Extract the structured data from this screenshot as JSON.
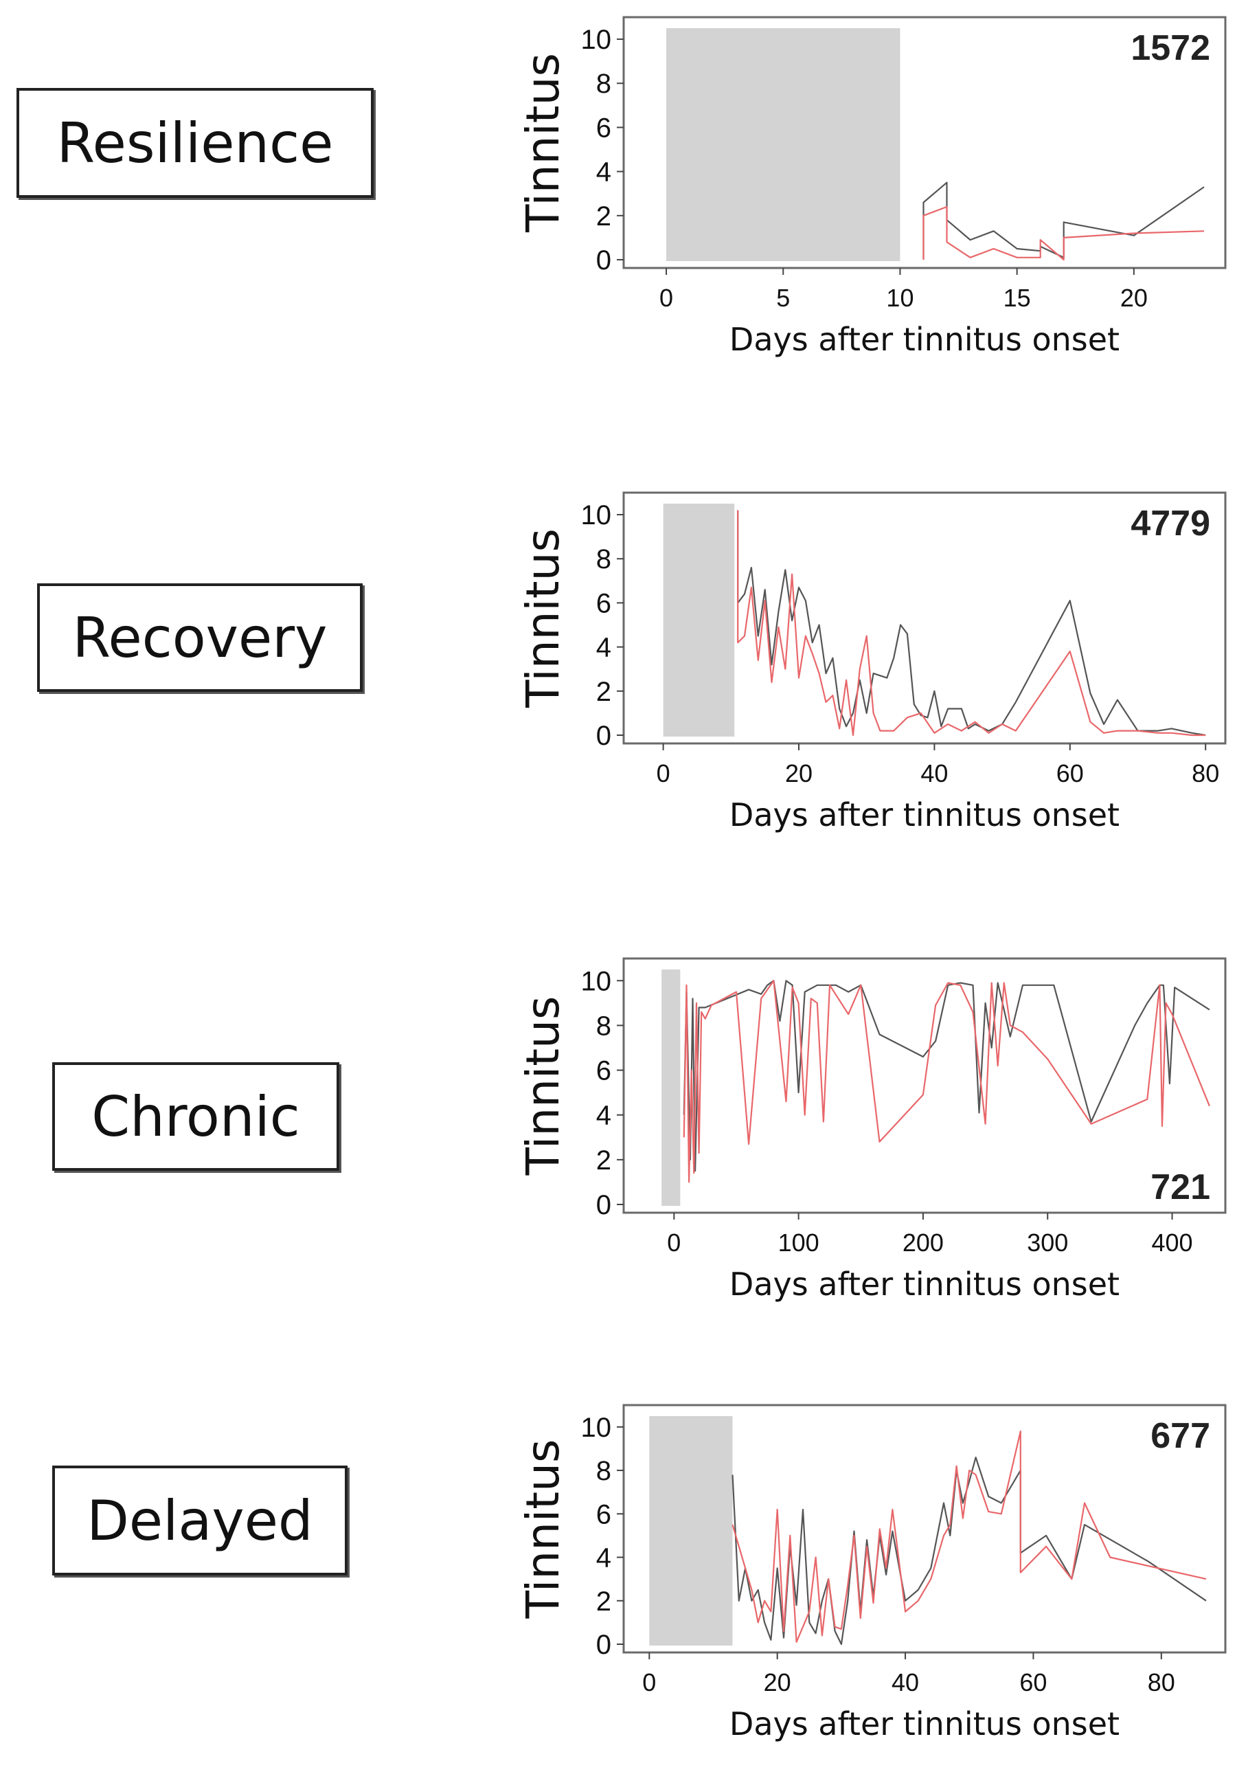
{
  "chart_data": [
    {
      "type": "line",
      "group_label": "Resilience",
      "patient_id": "1572",
      "id_position": "top-right",
      "xlabel": "Days after tinnitus onset",
      "ylabel": "Tinnitus",
      "xlim": [
        -1,
        23.5
      ],
      "ylim": [
        0,
        10.5
      ],
      "xticks": [
        0,
        5,
        10,
        15,
        20
      ],
      "yticks": [
        0,
        2,
        4,
        6,
        8,
        10
      ],
      "shaded_interval": [
        0,
        10
      ],
      "series": [
        {
          "name": "black",
          "color": "#555555",
          "x": [
            11,
            11,
            12,
            12,
            13,
            14,
            15,
            16,
            16,
            17,
            17,
            20,
            23
          ],
          "y": [
            0,
            2.6,
            3.5,
            1.8,
            0.9,
            1.3,
            0.5,
            0.4,
            0.6,
            0.1,
            1.7,
            1.1,
            3.3
          ]
        },
        {
          "name": "red",
          "color": "#e8676a",
          "x": [
            11,
            11,
            12,
            12,
            13,
            14,
            15,
            16,
            16,
            17,
            17,
            20,
            23
          ],
          "y": [
            0,
            2.0,
            2.4,
            0.8,
            0.1,
            0.5,
            0.1,
            0.1,
            0.9,
            0.0,
            1.0,
            1.2,
            1.3
          ]
        }
      ]
    },
    {
      "type": "line",
      "group_label": "Recovery",
      "patient_id": "4779",
      "id_position": "top-right",
      "xlabel": "Days after tinnitus onset",
      "ylabel": "Tinnitus",
      "xlim": [
        -3,
        81.5
      ],
      "ylim": [
        0,
        10.5
      ],
      "xticks": [
        0,
        20,
        40,
        60,
        80
      ],
      "yticks": [
        0,
        2,
        4,
        6,
        8,
        10
      ],
      "shaded_interval": [
        0,
        10.5
      ],
      "series": [
        {
          "name": "black",
          "color": "#555555",
          "x": [
            11,
            11,
            12,
            13,
            14,
            15,
            16,
            17,
            18,
            19,
            20,
            21,
            22,
            23,
            24,
            25,
            26,
            27,
            28,
            29,
            30,
            31,
            33,
            34,
            35,
            36,
            37,
            38,
            39,
            40,
            41,
            42,
            44,
            45,
            46,
            48,
            50,
            52,
            60,
            63,
            65,
            67,
            70,
            73,
            75,
            78,
            80
          ],
          "y": [
            10.2,
            6.0,
            6.4,
            7.6,
            4.5,
            6.6,
            3.2,
            5.6,
            7.5,
            5.2,
            6.7,
            6.1,
            4.2,
            5.0,
            2.8,
            3.5,
            1.2,
            0.4,
            1.0,
            2.5,
            1.0,
            2.8,
            2.6,
            3.5,
            5.0,
            4.6,
            1.4,
            0.9,
            0.8,
            2.0,
            0.4,
            1.2,
            1.2,
            0.3,
            0.5,
            0.2,
            0.5,
            1.5,
            6.1,
            1.9,
            0.5,
            1.6,
            0.2,
            0.2,
            0.3,
            0.1,
            0.0
          ]
        },
        {
          "name": "red",
          "color": "#e8676a",
          "x": [
            11,
            11,
            12,
            13,
            14,
            15,
            16,
            17,
            18,
            19,
            20,
            21,
            22,
            23,
            24,
            25,
            26,
            27,
            28,
            29,
            30,
            31,
            32,
            34,
            36,
            38,
            40,
            42,
            44,
            46,
            48,
            50,
            52,
            60,
            63,
            65,
            67,
            70,
            73,
            75,
            78,
            80
          ],
          "y": [
            10.2,
            4.2,
            4.5,
            6.7,
            3.4,
            6.1,
            2.4,
            4.9,
            3.0,
            7.3,
            2.6,
            4.5,
            3.7,
            2.8,
            1.5,
            1.8,
            0.3,
            2.5,
            0.0,
            3.0,
            4.5,
            1.0,
            0.2,
            0.2,
            0.8,
            1.0,
            0.1,
            0.5,
            0.2,
            0.6,
            0.1,
            0.5,
            0.2,
            3.8,
            0.6,
            0.1,
            0.2,
            0.2,
            0.1,
            0.1,
            0.0,
            0.0
          ]
        }
      ]
    },
    {
      "type": "line",
      "group_label": "Chronic",
      "patient_id": "721",
      "id_position": "bottom-right",
      "xlabel": "Days after tinnitus onset",
      "ylabel": "Tinnitus",
      "xlim": [
        -25,
        435
      ],
      "ylim": [
        0,
        10.5
      ],
      "xticks": [
        0,
        100,
        200,
        300,
        400
      ],
      "yticks": [
        0,
        2,
        4,
        6,
        8,
        10
      ],
      "shaded_interval": [
        -10,
        5
      ],
      "series": [
        {
          "name": "black",
          "color": "#555555",
          "x": [
            8,
            10,
            13,
            15,
            17,
            20,
            25,
            60,
            70,
            75,
            80,
            85,
            90,
            95,
            100,
            105,
            115,
            130,
            140,
            150,
            165,
            200,
            210,
            220,
            230,
            240,
            245,
            250,
            255,
            260,
            270,
            280,
            290,
            305,
            335,
            370,
            380,
            390,
            393,
            398,
            402,
            430
          ],
          "y": [
            4.0,
            9.5,
            2.0,
            9.2,
            1.5,
            8.8,
            8.8,
            9.6,
            9.4,
            9.8,
            10.0,
            8.2,
            10.0,
            9.8,
            5.0,
            9.5,
            9.8,
            9.8,
            9.5,
            9.8,
            7.6,
            6.6,
            7.3,
            9.8,
            9.9,
            9.8,
            4.1,
            9.0,
            7.0,
            9.9,
            7.5,
            9.8,
            9.8,
            9.8,
            3.7,
            8.0,
            9.0,
            9.8,
            9.8,
            5.4,
            9.7,
            8.7
          ]
        },
        {
          "name": "red",
          "color": "#e8676a",
          "x": [
            8,
            10,
            12,
            14,
            16,
            18,
            20,
            22,
            25,
            30,
            50,
            60,
            70,
            80,
            90,
            95,
            100,
            105,
            110,
            115,
            120,
            125,
            140,
            150,
            165,
            200,
            210,
            220,
            230,
            240,
            250,
            255,
            260,
            265,
            270,
            280,
            300,
            335,
            380,
            390,
            392,
            395,
            400,
            430
          ],
          "y": [
            3.0,
            9.8,
            1.0,
            6.0,
            1.4,
            9.0,
            2.3,
            8.6,
            8.3,
            8.9,
            9.5,
            2.7,
            9.2,
            10.0,
            4.6,
            9.7,
            9.0,
            4.0,
            9.2,
            9.0,
            3.7,
            9.8,
            8.5,
            9.8,
            2.8,
            4.9,
            8.9,
            9.9,
            9.8,
            8.6,
            3.6,
            9.9,
            6.2,
            9.9,
            8.0,
            7.7,
            6.5,
            3.6,
            4.7,
            9.8,
            3.5,
            9.0,
            8.5,
            4.4
          ]
        }
      ]
    },
    {
      "type": "line",
      "group_label": "Delayed",
      "patient_id": "677",
      "id_position": "top-right",
      "xlabel": "Days after tinnitus onset",
      "ylabel": "Tinnitus",
      "xlim": [
        -1,
        88.5
      ],
      "ylim": [
        0,
        10.5
      ],
      "xticks": [
        0,
        20,
        40,
        60,
        80
      ],
      "yticks": [
        0,
        2,
        4,
        6,
        8,
        10
      ],
      "shaded_interval": [
        0,
        13
      ],
      "series": [
        {
          "name": "black",
          "color": "#555555",
          "x": [
            13,
            14,
            15,
            16,
            17,
            18,
            19,
            20,
            21,
            22,
            23,
            24,
            25,
            26,
            27,
            28,
            29,
            30,
            31,
            32,
            33,
            34,
            35,
            36,
            37,
            38,
            40,
            42,
            44,
            46,
            47,
            48,
            49,
            50,
            51,
            53,
            55,
            58,
            58,
            62,
            66,
            68,
            78,
            87
          ],
          "y": [
            7.8,
            2.0,
            3.5,
            2.0,
            2.5,
            1.0,
            0.2,
            3.5,
            0.3,
            4.5,
            1.8,
            6.2,
            1.0,
            0.5,
            2.0,
            3.0,
            0.6,
            0.0,
            2.0,
            5.2,
            1.5,
            4.8,
            2.2,
            5.0,
            3.2,
            5.2,
            2.0,
            2.5,
            3.5,
            6.5,
            5.0,
            8.0,
            6.5,
            7.5,
            8.6,
            6.8,
            6.5,
            8.0,
            4.2,
            5.0,
            3.0,
            5.5,
            3.8,
            2.0
          ]
        },
        {
          "name": "red",
          "color": "#e8676a",
          "x": [
            13,
            14,
            15,
            16,
            17,
            18,
            19,
            20,
            21,
            22,
            23,
            24,
            25,
            26,
            27,
            28,
            29,
            30,
            31,
            32,
            33,
            34,
            35,
            36,
            37,
            38,
            40,
            42,
            44,
            46,
            47,
            48,
            49,
            50,
            51,
            53,
            55,
            58,
            58,
            62,
            66,
            68,
            72,
            87
          ],
          "y": [
            5.5,
            4.5,
            3.5,
            2.5,
            1.0,
            2.0,
            1.5,
            6.2,
            0.6,
            5.0,
            0.1,
            0.8,
            1.5,
            4.0,
            0.4,
            3.0,
            0.8,
            0.7,
            2.7,
            5.0,
            1.2,
            4.5,
            1.9,
            5.3,
            3.5,
            6.2,
            1.5,
            2.0,
            3.0,
            5.0,
            5.5,
            8.2,
            5.8,
            8.0,
            7.8,
            6.1,
            6.0,
            9.8,
            3.3,
            4.5,
            3.0,
            6.5,
            4.0,
            3.0
          ]
        }
      ]
    }
  ]
}
